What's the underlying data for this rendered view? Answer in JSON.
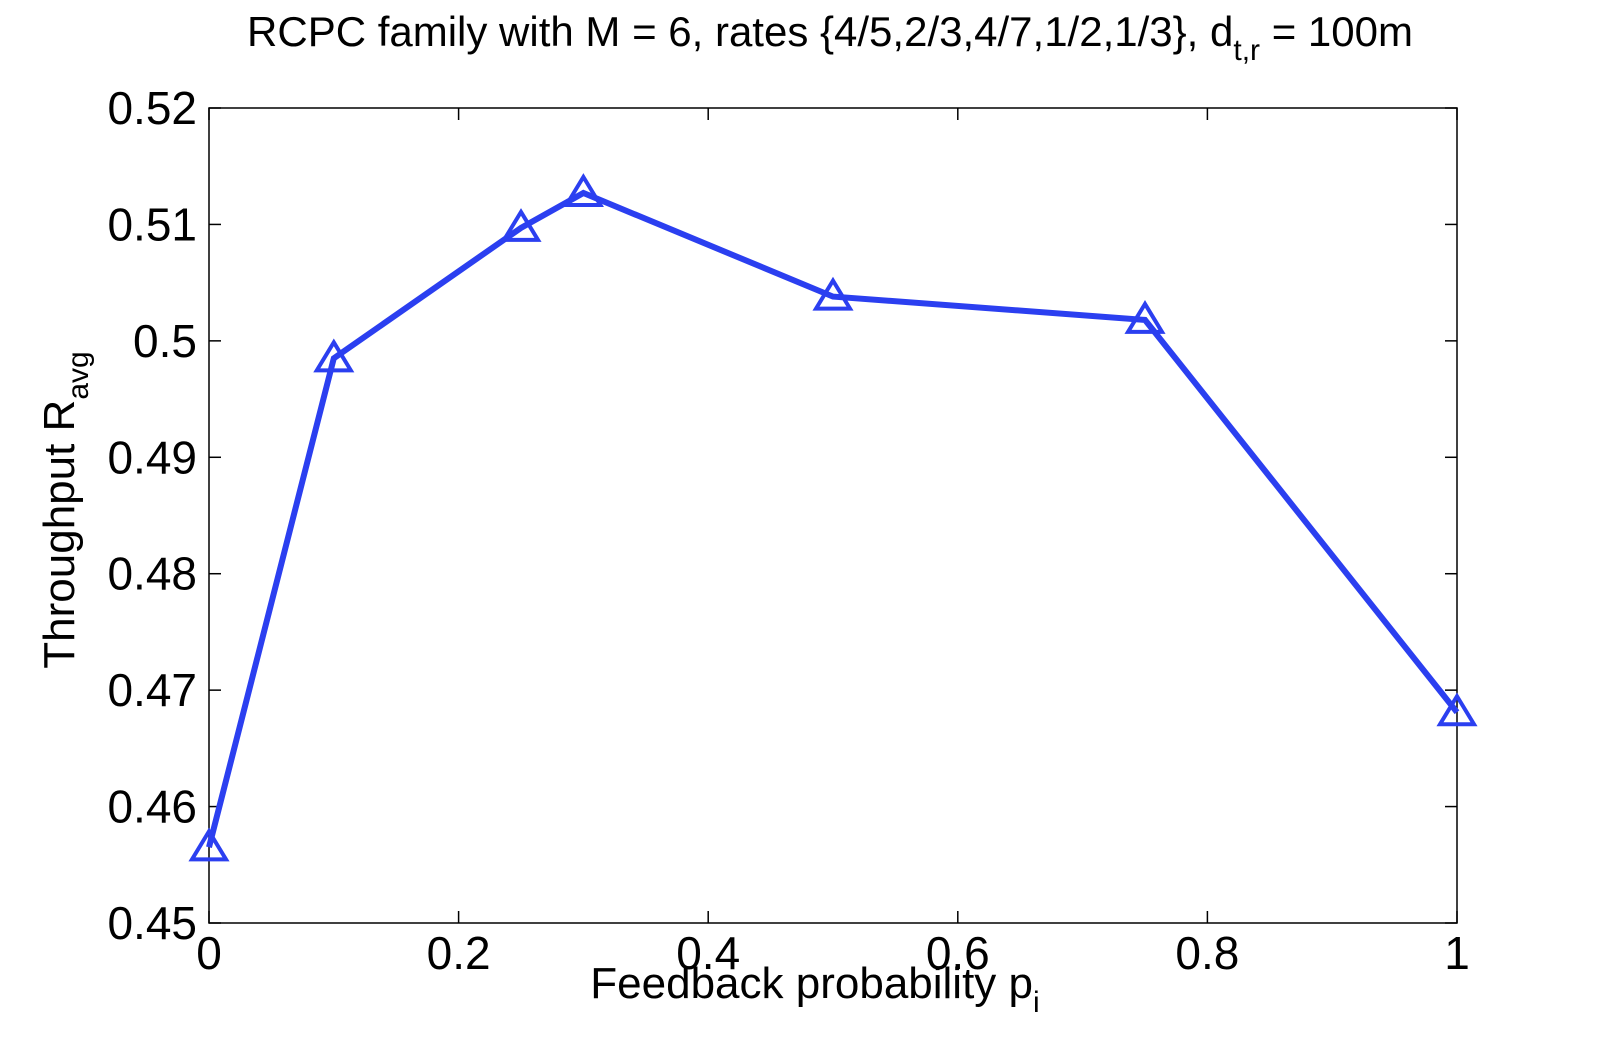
{
  "chart_data": {
    "type": "line",
    "title": {
      "main": "RCPC family with M = 6, rates {4/5,2/3,4/7,1/2,1/3}, d",
      "subscript": "t,r",
      "tail": " = 100m"
    },
    "xlabel": {
      "main": "Feedback probability p",
      "subscript": "i"
    },
    "ylabel": {
      "main": "Throughput R",
      "subscript": "avg"
    },
    "xlim": [
      0,
      1
    ],
    "ylim": [
      0.45,
      0.52
    ],
    "x_ticks": [
      0,
      0.2,
      0.4,
      0.6,
      0.8,
      1
    ],
    "x_tick_labels": [
      "0",
      "0.2",
      "0.4",
      "0.6",
      "0.8",
      "1"
    ],
    "y_ticks": [
      0.45,
      0.46,
      0.47,
      0.48,
      0.49,
      0.5,
      0.51,
      0.52
    ],
    "y_tick_labels": [
      "0.45",
      "0.46",
      "0.47",
      "0.48",
      "0.49",
      "0.5",
      "0.51",
      "0.52"
    ],
    "grid": false,
    "legend": "none",
    "series": [
      {
        "marker": "triangle-up",
        "color": "#2b3ff0",
        "x": [
          0,
          0.1,
          0.25,
          0.3,
          0.5,
          0.75,
          1
        ],
        "y": [
          0.4565,
          0.4985,
          0.5097,
          0.5127,
          0.5038,
          0.5018,
          0.4681
        ]
      }
    ]
  }
}
